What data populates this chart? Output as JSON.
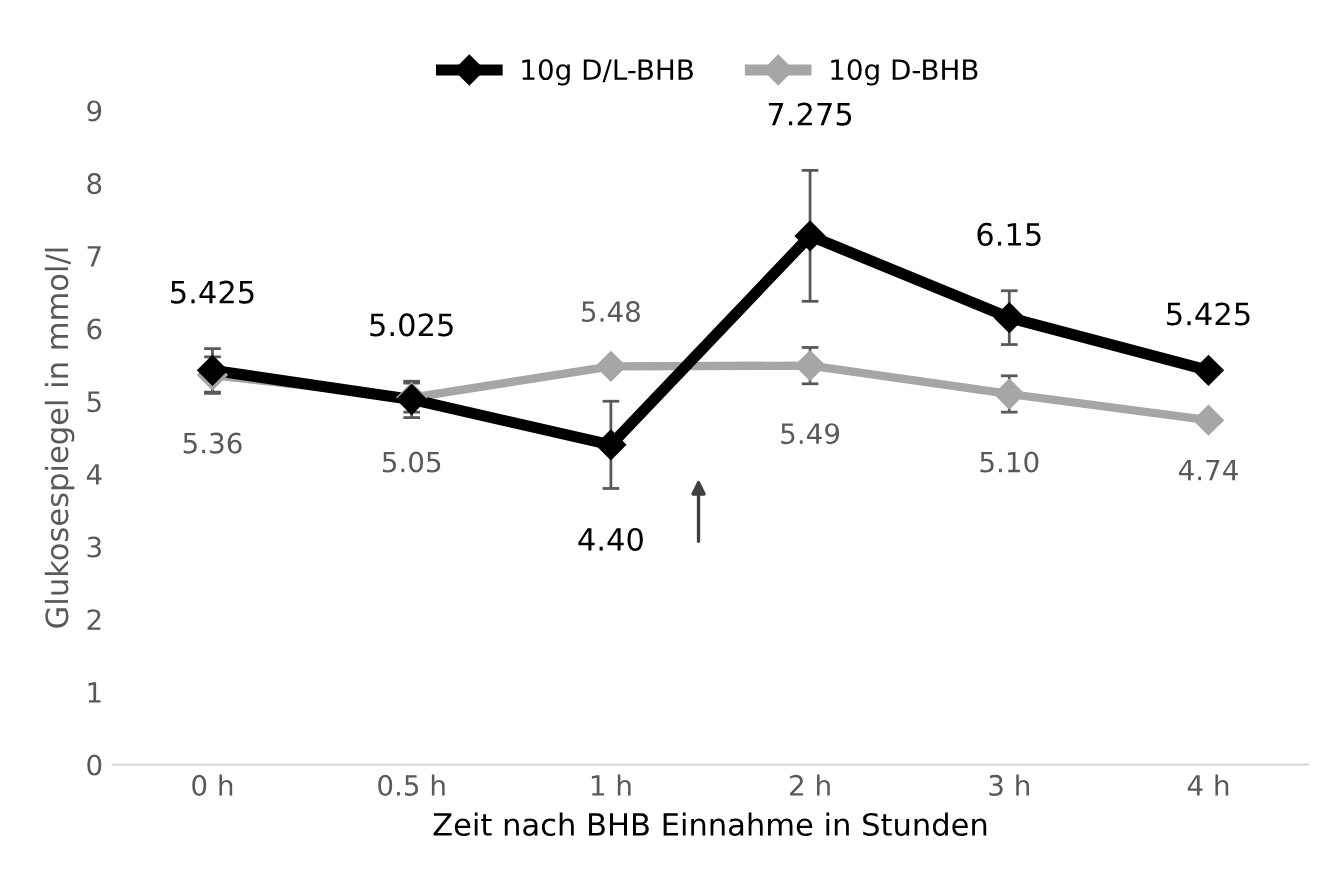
{
  "chart_data": {
    "type": "line",
    "categories": [
      "0 h",
      "0.5 h",
      "1 h",
      "2 h",
      "3 h",
      "4 h"
    ],
    "xlabel": "Zeit nach BHB Einnahme in Stunden",
    "ylabel": "Glukosespiegel in mmol/l",
    "ylim": [
      0,
      9
    ],
    "yticks": [
      0,
      1,
      2,
      3,
      4,
      5,
      6,
      7,
      8,
      9
    ],
    "series": [
      {
        "name": "10g D/L-BHB",
        "color": "#000000",
        "values": [
          5.425,
          5.025,
          4.4,
          7.275,
          6.15,
          5.425
        ],
        "errors": [
          0.3,
          0.25,
          0.6,
          0.9,
          0.37,
          null
        ],
        "value_labels": [
          "5.425",
          "5.025",
          "4.40",
          "7.275",
          "6.15",
          "5.425"
        ]
      },
      {
        "name": "10g D-BHB",
        "color": "#a6a6a6",
        "values": [
          5.36,
          5.05,
          5.48,
          5.49,
          5.1,
          4.74
        ],
        "errors": [
          0.25,
          0.2,
          null,
          0.25,
          0.25,
          null
        ],
        "value_labels": [
          "5.36",
          "5.05",
          "5.48",
          "5.49",
          "5.10",
          "4.74"
        ]
      }
    ],
    "marker": "diamond",
    "grid": false,
    "legend": "top"
  }
}
